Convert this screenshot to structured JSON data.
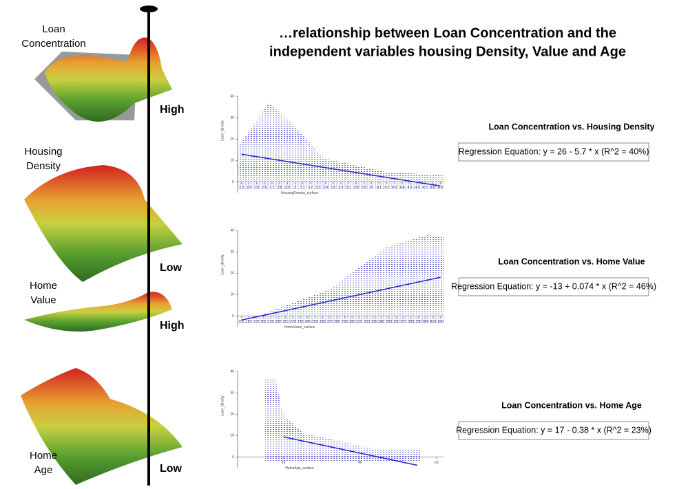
{
  "title_lines": [
    "…relationship between Loan Concentration and the",
    "independent variables housing Density, Value and Age"
  ],
  "surface_labels": [
    [
      "Loan",
      "Concentration"
    ],
    [
      "Housing",
      "Density"
    ],
    [
      "Home",
      "Value"
    ],
    [
      "Home",
      "Age"
    ]
  ],
  "scale_labels": [
    "High",
    "Low",
    "High",
    "Low"
  ],
  "plots": [
    {
      "caption": "Loan Concentration vs. Housing Density",
      "equation": "Regression Equation: y = 26 - 5.7 * x (R^2 = 40%)",
      "ylabel": "Loan_density",
      "xlabel": "HousingDensity_surface",
      "xlim": [
        2.25,
        4.95
      ],
      "ylim": [
        -5,
        40
      ],
      "xticks": [
        2.3,
        2.4,
        2.5,
        2.6,
        2.7,
        2.8,
        2.9,
        3.0,
        3.1,
        3.2,
        3.3,
        3.4,
        3.5,
        3.6,
        3.7,
        3.8,
        3.9,
        4.0,
        4.1,
        4.2,
        4.3,
        4.4,
        4.5,
        4.6,
        4.7,
        4.8,
        4.9
      ],
      "yticks": [
        0,
        10,
        20,
        30,
        40
      ],
      "fit": {
        "x": [
          2.3,
          4.9
        ],
        "y": [
          12.9,
          -1.9
        ]
      }
    },
    {
      "caption": "Loan Concentration vs. Home Value",
      "equation": "Regression Equation: y = -13 + 0.074 * x (R^2 = 46%)",
      "ylabel": "Loan_density",
      "xlabel": "HomeValue_surface",
      "xlim": [
        145,
        425
      ],
      "ylim": [
        -5,
        40
      ],
      "xticks": [
        150,
        160,
        170,
        180,
        190,
        200,
        210,
        220,
        230,
        240,
        250,
        260,
        270,
        280,
        290,
        300,
        310,
        320,
        330,
        340,
        350,
        360,
        370,
        380,
        390,
        400,
        410,
        420
      ],
      "yticks": [
        0,
        10,
        20,
        30,
        40
      ],
      "fit": {
        "x": [
          150,
          420
        ],
        "y": [
          -1.9,
          18.1
        ]
      }
    },
    {
      "caption": "Loan Concentration vs. Home Age",
      "equation": "Regression Equation: y = 17 - 0.38 * x (R^2 = 23%)",
      "ylabel": "Loan_density",
      "xlabel": "HomeAge_surface",
      "xlim": [
        8,
        62
      ],
      "ylim": [
        -5,
        40
      ],
      "xticks": [
        20,
        40,
        60
      ],
      "yticks": [
        0,
        10,
        20,
        30,
        40
      ],
      "fit": {
        "x": [
          20,
          55
        ],
        "y": [
          9.4,
          -3.9
        ]
      }
    }
  ]
}
